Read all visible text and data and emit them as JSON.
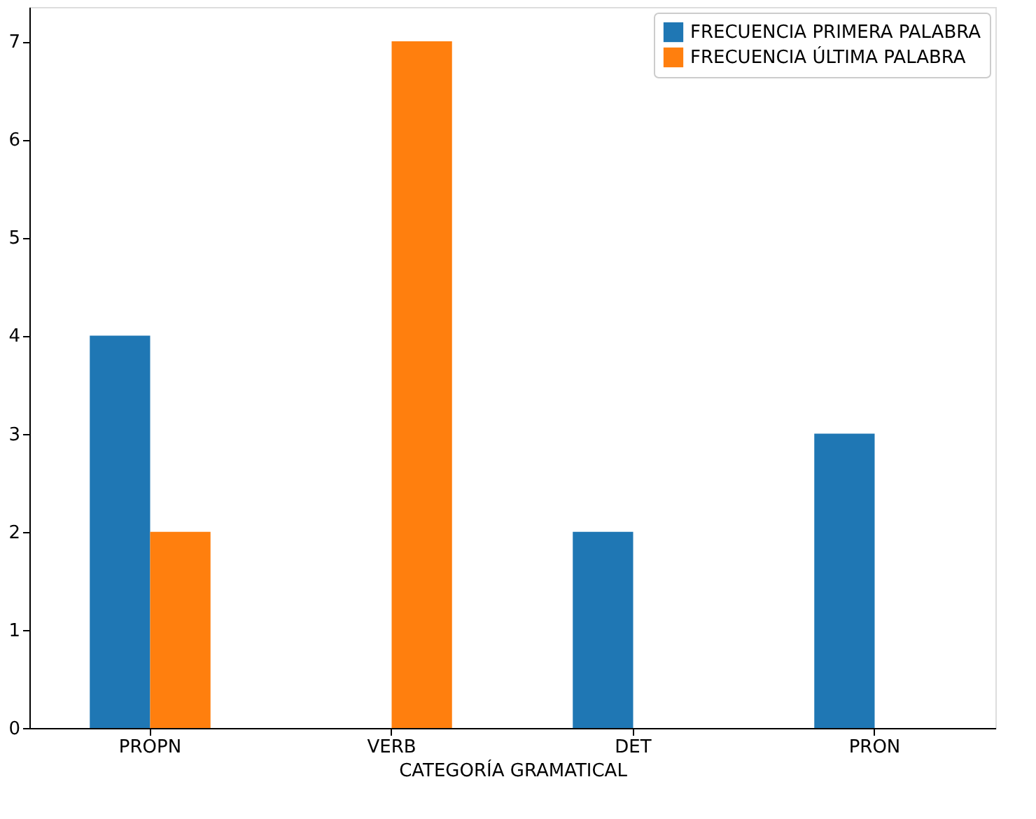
{
  "chart_data": {
    "type": "bar",
    "xlabel": "CATEGORÍA GRAMATICAL",
    "categories": [
      "PROPN",
      "VERB",
      "DET",
      "PRON"
    ],
    "series": [
      {
        "name": "FRECUENCIA PRIMERA PALABRA",
        "color": "#1f77b4",
        "values": [
          4,
          null,
          2,
          3
        ]
      },
      {
        "name": "FRECUENCIA ÚLTIMA PALABRA",
        "color": "#ff7f0e",
        "values": [
          2,
          7,
          null,
          null
        ]
      }
    ],
    "ylim": [
      0,
      7.35
    ],
    "yticks": [
      0,
      1,
      2,
      3,
      4,
      5,
      6,
      7
    ],
    "grid": false,
    "legend": "top right"
  }
}
